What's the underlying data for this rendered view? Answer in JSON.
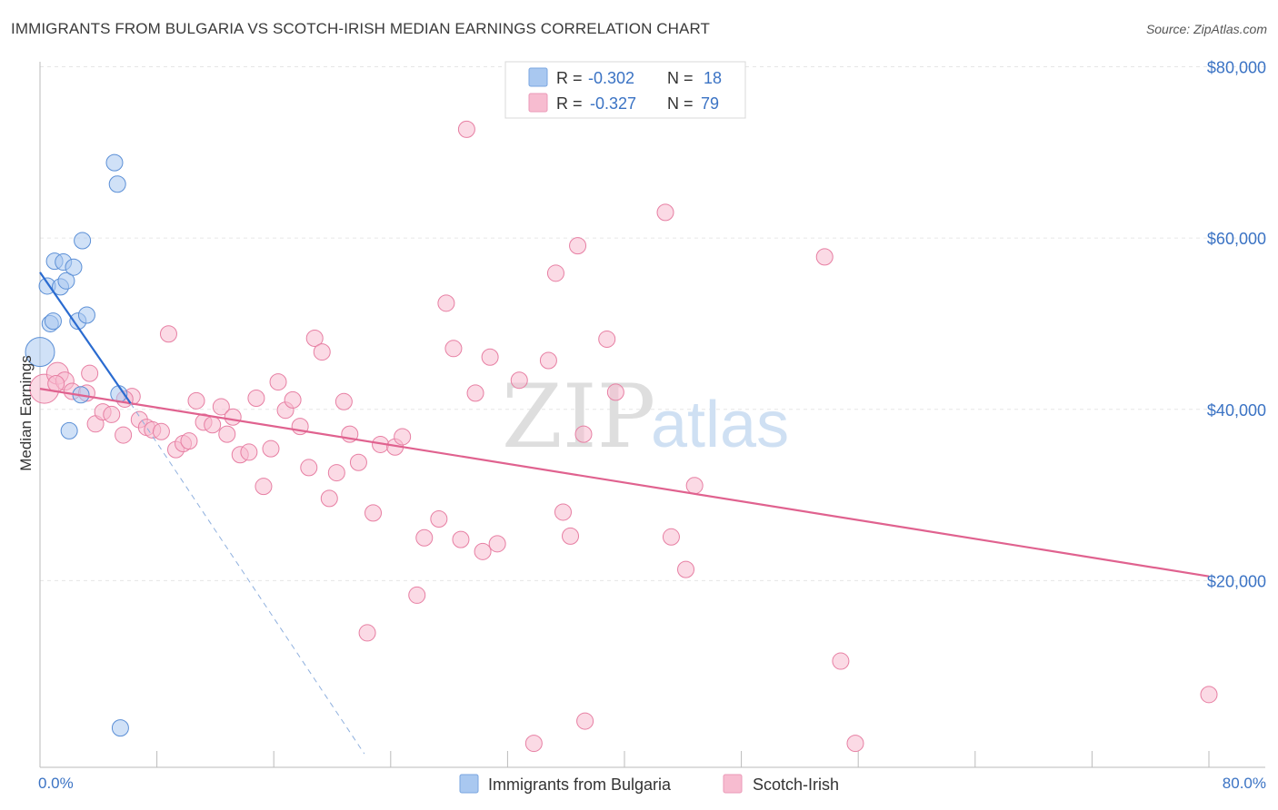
{
  "title": "IMMIGRANTS FROM BULGARIA VS SCOTCH-IRISH MEDIAN EARNINGS CORRELATION CHART",
  "source": "Source: ZipAtlas.com",
  "watermark": {
    "zip": "ZIP",
    "atlas": "atlas"
  },
  "legend": {
    "rows": [
      {
        "r_label": "R = ",
        "r_value": "-0.302",
        "n_label": "N = ",
        "n_value": "18",
        "color": "#a9c8f0"
      },
      {
        "r_label": "R = ",
        "r_value": "-0.327",
        "n_label": "N = ",
        "n_value": "79",
        "color": "#f7bcd0"
      }
    ]
  },
  "chart_data": {
    "type": "scatter",
    "xlabel": "",
    "ylabel": "Median Earnings",
    "xlim": [
      0,
      80
    ],
    "ylim": [
      0,
      80000
    ],
    "x_tick_labels": [
      "0.0%",
      "80.0%"
    ],
    "y_ticks": [
      20000,
      40000,
      60000,
      80000
    ],
    "y_tick_labels": [
      "$20,000",
      "$40,000",
      "$60,000",
      "$80,000"
    ],
    "grid": true,
    "legend_position": "top-center",
    "series": [
      {
        "name": "Immigrants from Bulgaria",
        "color": "#a9c8f0",
        "stroke": "#5b8fd6",
        "trend_color": "#2a6bd0",
        "trend": {
          "x0": 0,
          "y0": 57800,
          "x1": 6.2,
          "y1": 42500,
          "dash_to_x": 22.2,
          "dash_to_y": 2000
        },
        "points": [
          [
            0.0,
            48500,
            16
          ],
          [
            0.5,
            56200,
            9
          ],
          [
            0.7,
            51800,
            9
          ],
          [
            0.9,
            52100,
            9
          ],
          [
            1.0,
            59100,
            9
          ],
          [
            1.4,
            56100,
            9
          ],
          [
            1.6,
            59000,
            9
          ],
          [
            1.8,
            56800,
            9
          ],
          [
            2.3,
            58400,
            9
          ],
          [
            2.6,
            52100,
            9
          ],
          [
            2.9,
            61500,
            9
          ],
          [
            3.2,
            52800,
            9
          ],
          [
            2.0,
            39300,
            9
          ],
          [
            2.8,
            43500,
            9
          ],
          [
            5.3,
            68100,
            9
          ],
          [
            5.1,
            70600,
            9
          ],
          [
            5.4,
            43600,
            9
          ],
          [
            5.5,
            4600,
            9
          ]
        ]
      },
      {
        "name": "Scotch-Irish",
        "color": "#f7bcd0",
        "stroke": "#e77fa3",
        "trend_color": "#e0628f",
        "trend": {
          "x0": 0,
          "y0": 44200,
          "x1": 80,
          "y1": 22300
        },
        "points": [
          [
            0.3,
            44200,
            16
          ],
          [
            1.2,
            46000,
            12
          ],
          [
            1.7,
            45100,
            10
          ],
          [
            2.2,
            43900,
            9
          ],
          [
            3.2,
            43700,
            9
          ],
          [
            3.8,
            40100,
            9
          ],
          [
            4.3,
            41500,
            9
          ],
          [
            4.9,
            41200,
            9
          ],
          [
            5.7,
            38800,
            9
          ],
          [
            6.3,
            43300,
            9
          ],
          [
            6.8,
            40600,
            9
          ],
          [
            7.3,
            39700,
            9
          ],
          [
            7.7,
            39400,
            9
          ],
          [
            8.3,
            39200,
            9
          ],
          [
            8.8,
            50600,
            9
          ],
          [
            9.3,
            37100,
            9
          ],
          [
            9.8,
            37800,
            9
          ],
          [
            10.2,
            38100,
            9
          ],
          [
            10.7,
            42800,
            9
          ],
          [
            11.2,
            40300,
            9
          ],
          [
            11.8,
            40000,
            9
          ],
          [
            12.4,
            42100,
            9
          ],
          [
            12.8,
            38900,
            9
          ],
          [
            13.2,
            40900,
            9
          ],
          [
            13.7,
            36500,
            9
          ],
          [
            14.3,
            36800,
            9
          ],
          [
            14.8,
            43100,
            9
          ],
          [
            15.3,
            32800,
            9
          ],
          [
            15.8,
            37200,
            9
          ],
          [
            16.3,
            45000,
            9
          ],
          [
            16.8,
            41700,
            9
          ],
          [
            17.3,
            42900,
            9
          ],
          [
            17.8,
            39800,
            9
          ],
          [
            18.4,
            35000,
            9
          ],
          [
            18.8,
            50100,
            9
          ],
          [
            19.3,
            48500,
            9
          ],
          [
            19.8,
            31400,
            9
          ],
          [
            20.3,
            34400,
            9
          ],
          [
            20.8,
            42700,
            9
          ],
          [
            21.2,
            38900,
            9
          ],
          [
            21.8,
            35600,
            9
          ],
          [
            22.4,
            15700,
            9
          ],
          [
            22.8,
            29700,
            9
          ],
          [
            23.3,
            37700,
            9
          ],
          [
            24.3,
            37400,
            9
          ],
          [
            24.8,
            38600,
            9
          ],
          [
            25.8,
            20100,
            9
          ],
          [
            26.3,
            26800,
            9
          ],
          [
            27.3,
            29000,
            9
          ],
          [
            27.8,
            54200,
            9
          ],
          [
            28.3,
            48900,
            9
          ],
          [
            28.8,
            26600,
            9
          ],
          [
            29.2,
            74500,
            9
          ],
          [
            29.8,
            43700,
            9
          ],
          [
            30.3,
            25200,
            9
          ],
          [
            30.8,
            47900,
            9
          ],
          [
            31.3,
            26100,
            9
          ],
          [
            32.8,
            45200,
            9
          ],
          [
            33.8,
            2800,
            9
          ],
          [
            34.8,
            47500,
            9
          ],
          [
            35.3,
            57700,
            9
          ],
          [
            35.8,
            29800,
            9
          ],
          [
            36.3,
            27000,
            9
          ],
          [
            36.8,
            60900,
            9
          ],
          [
            37.2,
            38900,
            9
          ],
          [
            37.3,
            5400,
            9
          ],
          [
            38.8,
            50000,
            9
          ],
          [
            39.4,
            43800,
            9
          ],
          [
            42.8,
            64800,
            9
          ],
          [
            43.2,
            26900,
            9
          ],
          [
            44.2,
            23100,
            9
          ],
          [
            44.8,
            32900,
            9
          ],
          [
            53.7,
            59600,
            9
          ],
          [
            54.8,
            12400,
            9
          ],
          [
            55.8,
            2800,
            9
          ],
          [
            80.0,
            8500,
            9
          ],
          [
            3.4,
            46000,
            9
          ],
          [
            1.1,
            44800,
            9
          ],
          [
            5.8,
            43000,
            9
          ]
        ]
      }
    ]
  }
}
